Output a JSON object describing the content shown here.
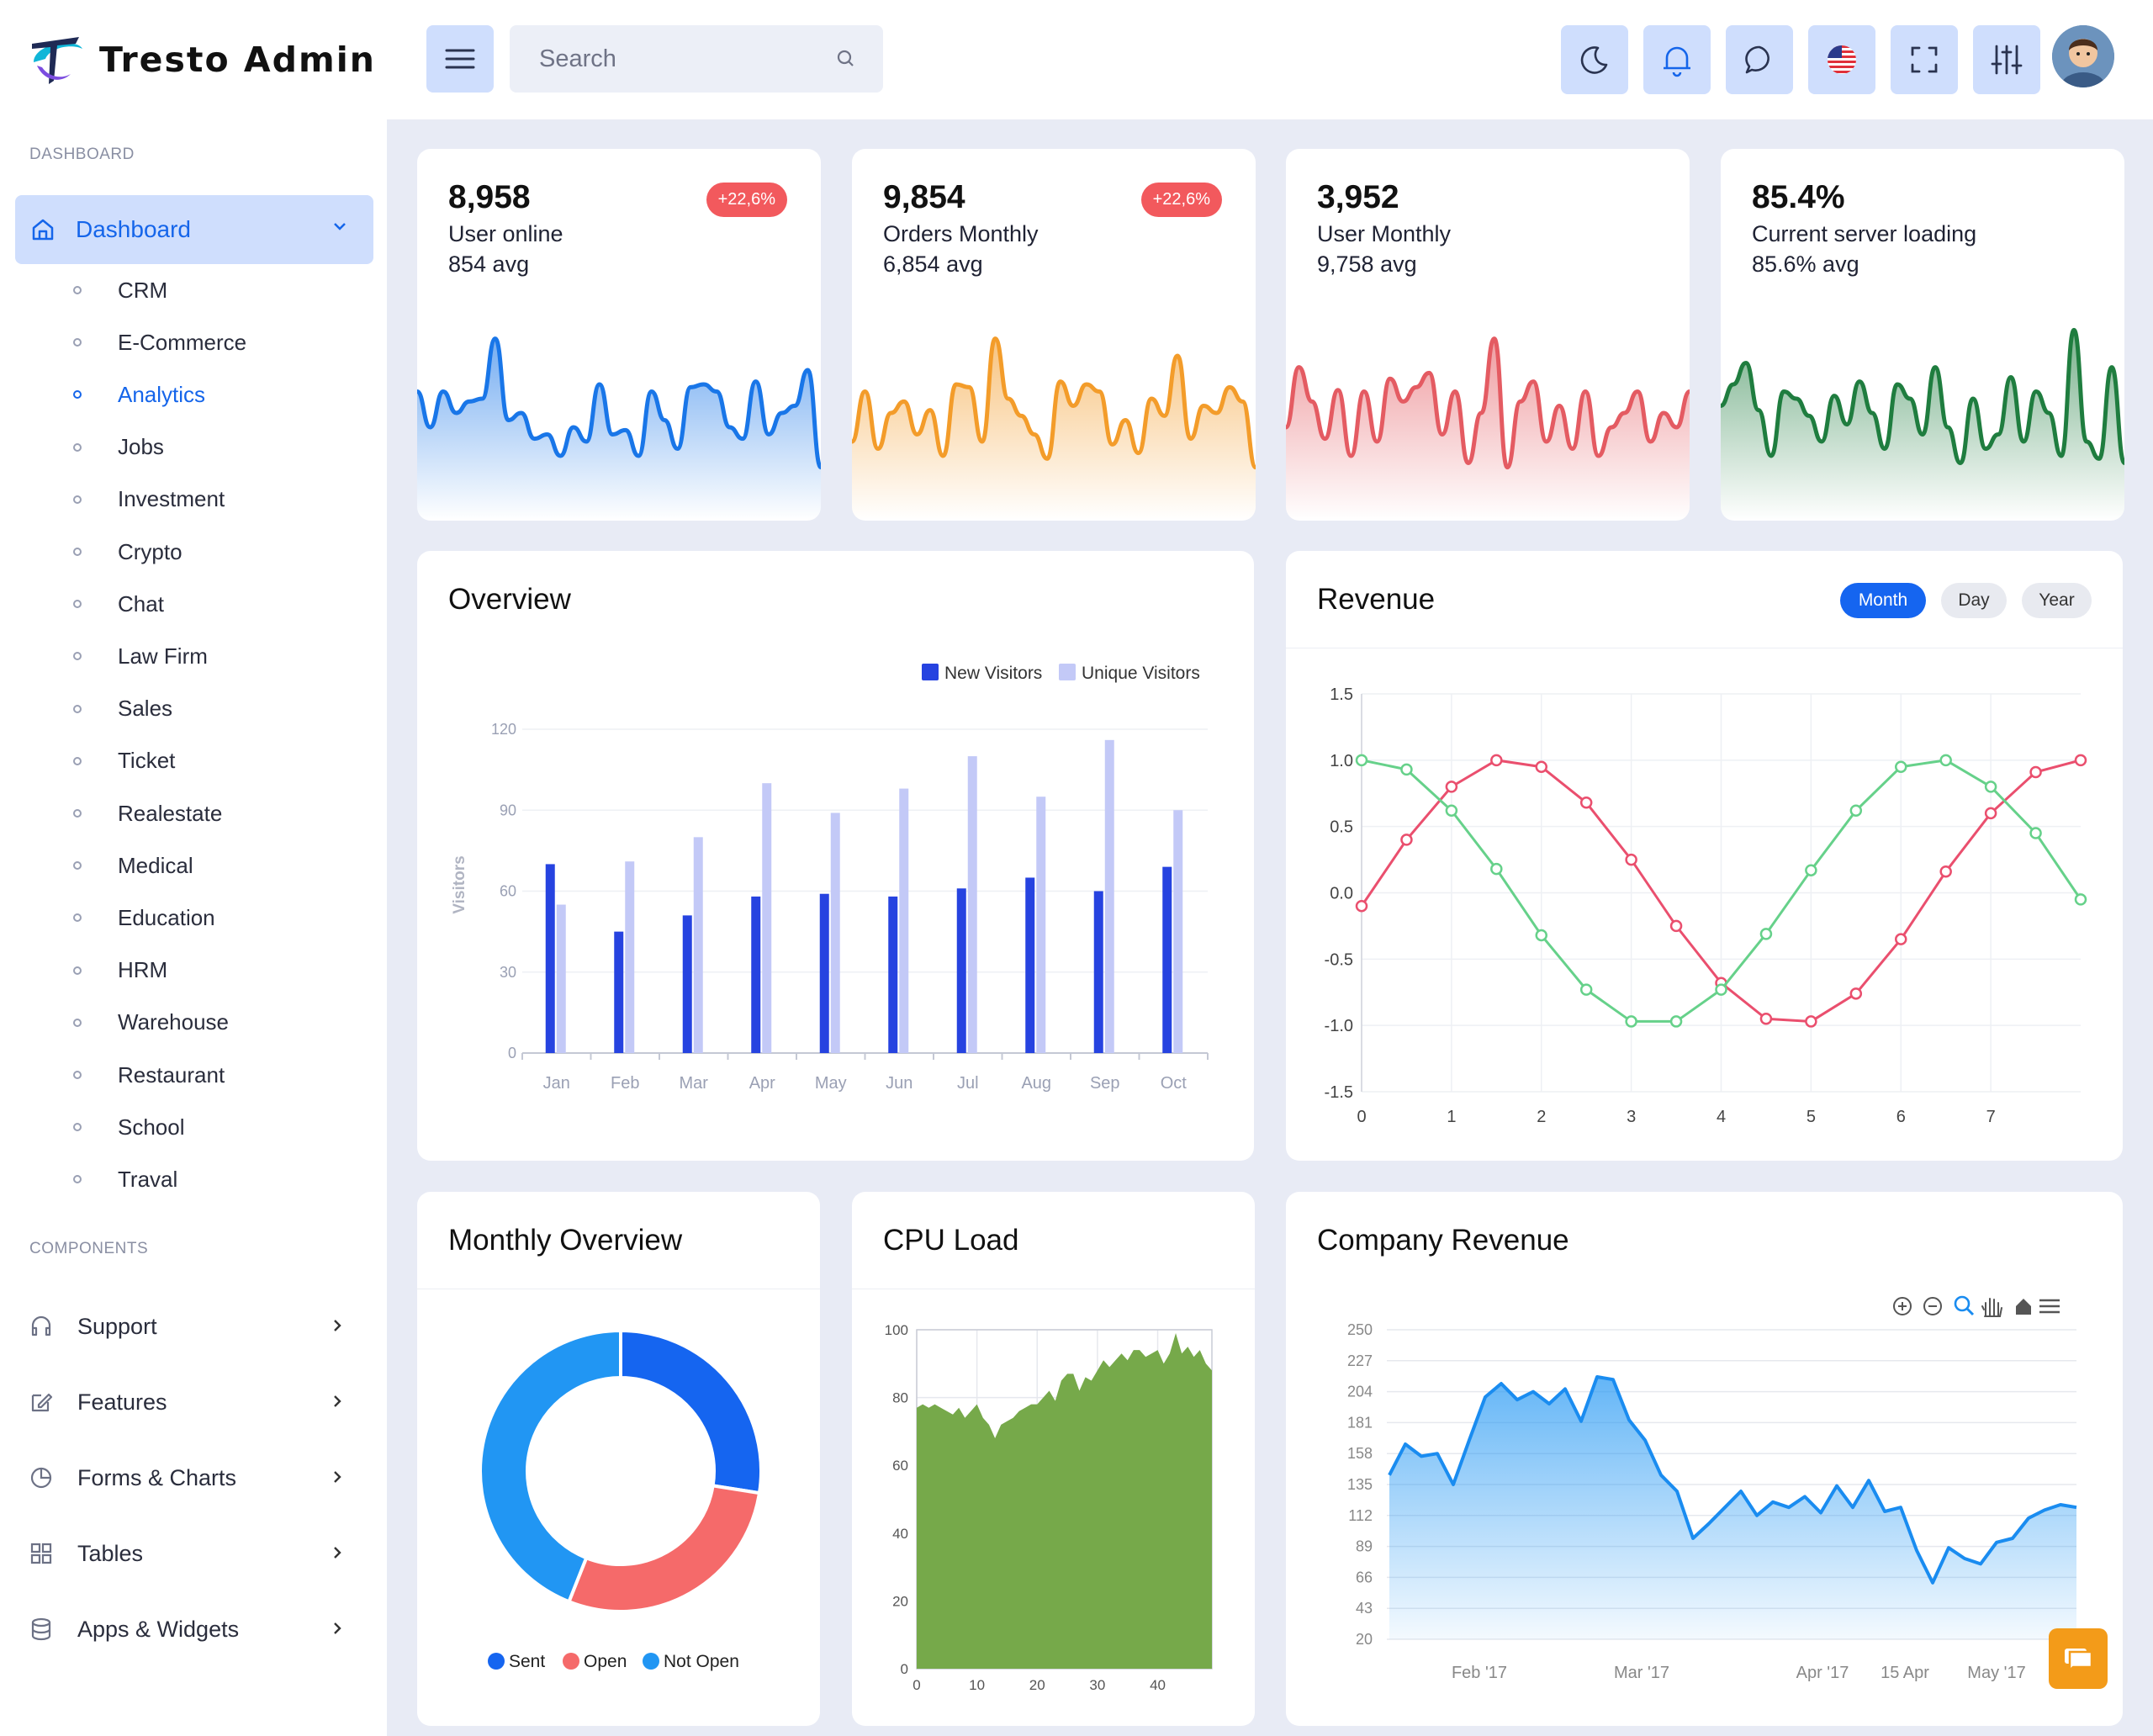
{
  "brand": {
    "name": "Tresto Admin"
  },
  "topbar": {
    "search_placeholder": "Search"
  },
  "sidebar": {
    "section_dashboard": "DASHBOARD",
    "dashboard_label": "Dashboard",
    "items": [
      "CRM",
      "E-Commerce",
      "Analytics",
      "Jobs",
      "Investment",
      "Crypto",
      "Chat",
      "Law Firm",
      "Sales",
      "Ticket",
      "Realestate",
      "Medical",
      "Education",
      "HRM",
      "Warehouse",
      "Restaurant",
      "School",
      "Traval"
    ],
    "active_item": "Analytics",
    "section_components": "COMPONENTS",
    "components": [
      "Support",
      "Features",
      "Forms & Charts",
      "Tables",
      "Apps & Widgets"
    ]
  },
  "stats": [
    {
      "value": "8,958",
      "label": "User online",
      "avg": "854 avg",
      "badge": "+22,6%",
      "color": "#1976e8"
    },
    {
      "value": "9,854",
      "label": "Orders Monthly",
      "avg": "6,854 avg",
      "badge": "+22,6%",
      "color": "#f39c2a"
    },
    {
      "value": "3,952",
      "label": "User Monthly",
      "avg": "9,758 avg",
      "badge": "",
      "color": "#e45b62"
    },
    {
      "value": "85.4%",
      "label": "Current server loading",
      "avg": "85.6% avg",
      "badge": "",
      "color": "#1f7d3f"
    }
  ],
  "overview": {
    "title": "Overview"
  },
  "revenue": {
    "title": "Revenue",
    "tabs": [
      "Month",
      "Day",
      "Year"
    ],
    "active_tab": "Month"
  },
  "monthly": {
    "title": "Monthly Overview"
  },
  "cpu": {
    "title": "CPU Load"
  },
  "company": {
    "title": "Company Revenue"
  },
  "chart_data": [
    {
      "id": "overview",
      "type": "bar",
      "categories": [
        "Jan",
        "Feb",
        "Mar",
        "Apr",
        "May",
        "Jun",
        "Jul",
        "Aug",
        "Sep",
        "Oct"
      ],
      "series": [
        {
          "name": "New Visitors",
          "values": [
            70,
            45,
            51,
            58,
            59,
            58,
            61,
            65,
            60,
            69
          ],
          "color": "#2643e0"
        },
        {
          "name": "Unique Visitors",
          "values": [
            55,
            71,
            80,
            100,
            89,
            98,
            110,
            95,
            116,
            90
          ],
          "color": "#c3c9f7"
        }
      ],
      "ylabel": "Visitors",
      "ylim": [
        0,
        120
      ],
      "yticks": [
        0,
        30,
        60,
        90,
        120
      ],
      "legend": "top-right"
    },
    {
      "id": "revenue",
      "type": "line",
      "x": [
        0,
        0.5,
        1,
        1.5,
        2,
        2.5,
        3,
        3.5,
        4,
        4.5,
        5,
        5.5,
        6,
        6.5,
        7,
        7.5,
        8
      ],
      "series": [
        {
          "name": "sin",
          "values": [
            -0.1,
            0.4,
            0.8,
            1.0,
            0.95,
            0.68,
            0.25,
            -0.25,
            -0.68,
            -0.95,
            -0.97,
            -0.76,
            -0.35,
            0.16,
            0.6,
            0.91,
            1.0
          ],
          "color": "#ea4f6e"
        },
        {
          "name": "cos",
          "values": [
            1.0,
            0.93,
            0.62,
            0.18,
            -0.32,
            -0.73,
            -0.97,
            -0.97,
            -0.73,
            -0.31,
            0.17,
            0.62,
            0.95,
            1.0,
            0.8,
            0.45,
            -0.05
          ],
          "color": "#66d18a"
        }
      ],
      "ylim": [
        -1.5,
        1.5
      ],
      "yticks": [
        "1.5",
        "1.0",
        "0.5",
        "0.0",
        "-0.5",
        "-1.0",
        "-1.5"
      ],
      "xticks": [
        0,
        1,
        2,
        3,
        4,
        5,
        6,
        7
      ]
    },
    {
      "id": "monthly",
      "type": "pie",
      "labels": [
        "Sent",
        "Open",
        "Not Open"
      ],
      "values": [
        27.5,
        28.5,
        44
      ],
      "colors": [
        "#1565f0",
        "#f56a6a",
        "#2196f3"
      ],
      "legend": "bottom"
    },
    {
      "id": "cpu",
      "type": "area",
      "x_ticks": [
        0,
        10,
        20,
        30,
        40
      ],
      "y_ticks": [
        0,
        20,
        40,
        60,
        80,
        100
      ],
      "xlim": [
        0,
        49
      ],
      "ylim": [
        0,
        100
      ],
      "values": [
        77,
        78,
        77,
        78,
        77,
        76,
        75,
        77,
        74,
        76,
        78,
        74,
        72,
        68,
        72,
        73,
        74,
        76,
        77,
        78,
        78,
        80,
        82,
        79,
        85,
        87,
        87,
        82,
        86,
        85,
        88,
        91,
        89,
        91,
        93,
        91,
        94,
        94,
        92,
        93,
        94,
        90,
        93,
        99,
        93,
        95,
        92,
        94,
        90,
        88
      ],
      "color": "#76a94a"
    },
    {
      "id": "company",
      "type": "area",
      "yticks": [
        20,
        43,
        66,
        89,
        112,
        135,
        158,
        181,
        204,
        227,
        250
      ],
      "ylim": [
        20,
        250
      ],
      "xticks": [
        "Feb '17",
        "Mar '17",
        "Apr '17",
        "15 Apr",
        "May '17"
      ],
      "color": "#1a8cf0",
      "values": [
        142,
        165,
        156,
        158,
        135,
        168,
        200,
        210,
        198,
        204,
        195,
        206,
        182,
        215,
        213,
        183,
        168,
        142,
        130,
        95,
        106,
        118,
        130,
        112,
        122,
        118,
        126,
        114,
        134,
        118,
        138,
        115,
        118,
        86,
        62,
        88,
        80,
        76,
        92,
        95,
        110,
        116,
        120,
        118
      ]
    }
  ]
}
